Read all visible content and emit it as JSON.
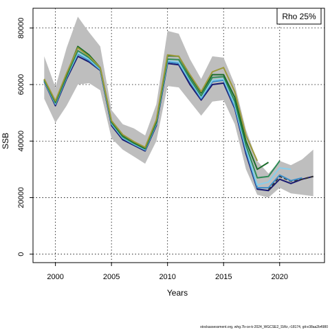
{
  "chart_data": {
    "type": "line",
    "title": "",
    "xlabel": "Years",
    "ylabel": "SSB",
    "xlim": [
      1998,
      2024
    ],
    "ylim": [
      -3000,
      87000
    ],
    "x_ticks": [
      2000,
      2005,
      2010,
      2015,
      2020
    ],
    "y_ticks": [
      0,
      20000,
      40000,
      60000,
      80000
    ],
    "grid": true,
    "legend": {
      "text": "Rho 25%",
      "position": "top-right"
    },
    "confidence_band": {
      "color": "#bebebe",
      "x": [
        1999,
        2000,
        2001,
        2002,
        2003,
        2004,
        2005,
        2006,
        2007,
        2008,
        2009,
        2010,
        2011,
        2012,
        2013,
        2014,
        2015,
        2016,
        2017,
        2018,
        2019,
        2020,
        2021,
        2022,
        2023
      ],
      "lower": [
        55000,
        46500,
        52500,
        60000,
        60500,
        58000,
        41000,
        37000,
        34500,
        32000,
        40000,
        59500,
        59000,
        54000,
        49000,
        54000,
        54500,
        46000,
        30000,
        21000,
        20000,
        23500,
        21500,
        21000,
        20500
      ],
      "upper": [
        70000,
        59000,
        73000,
        84000,
        78500,
        73500,
        51000,
        46000,
        44500,
        42000,
        53000,
        79000,
        78000,
        69000,
        62000,
        70000,
        69500,
        60000,
        44000,
        33000,
        28500,
        33000,
        31500,
        33500,
        37000
      ]
    },
    "series": [
      {
        "color": "#191970",
        "dashed": false,
        "x": [
          1999,
          2000,
          2001,
          2002,
          2003,
          2004,
          2005,
          2006,
          2007,
          2008,
          2009,
          2010,
          2011,
          2012,
          2013,
          2014,
          2015,
          2016,
          2017,
          2018,
          2019,
          2020,
          2021,
          2022,
          2023
        ],
        "values": [
          61000,
          52500,
          62000,
          70000,
          68000,
          65000,
          45500,
          40500,
          38500,
          36500,
          45500,
          67500,
          67000,
          60000,
          54500,
          60000,
          60500,
          51500,
          35500,
          23000,
          22500,
          26500,
          25000,
          26500,
          27500
        ]
      },
      {
        "color": "#333333",
        "dashed": true,
        "x": [
          2019,
          2020,
          2021,
          2022,
          2023
        ],
        "values": [
          22800,
          27500,
          25800,
          26500,
          27500
        ]
      },
      {
        "color": "#3c8dc8",
        "dashed": false,
        "x": [
          1999,
          2000,
          2001,
          2002,
          2003,
          2004,
          2005,
          2006,
          2007,
          2008,
          2009,
          2010,
          2011,
          2012,
          2013,
          2014,
          2015,
          2016,
          2017,
          2018,
          2019,
          2020,
          2021,
          2022
        ],
        "values": [
          61200,
          53000,
          62500,
          70800,
          68500,
          65200,
          46000,
          41000,
          38800,
          36800,
          46000,
          68000,
          67500,
          61000,
          55000,
          61000,
          61500,
          52000,
          36500,
          23500,
          23500,
          28000,
          26000,
          27000
        ]
      },
      {
        "color": "#87ceeb",
        "dashed": false,
        "x": [
          1999,
          2000,
          2001,
          2002,
          2003,
          2004,
          2005,
          2006,
          2007,
          2008,
          2009,
          2010,
          2011,
          2012,
          2013,
          2014,
          2015,
          2016,
          2017,
          2018,
          2019,
          2020,
          2021
        ],
        "values": [
          61300,
          53200,
          62800,
          71200,
          69000,
          65500,
          46200,
          41200,
          39000,
          37000,
          46200,
          68500,
          68000,
          61500,
          55500,
          61500,
          62000,
          53000,
          37500,
          24500,
          25500,
          30500,
          30000
        ]
      },
      {
        "color": "#2e8b57",
        "dashed": false,
        "x": [
          1999,
          2000,
          2001,
          2002,
          2003,
          2004,
          2005,
          2006,
          2007,
          2008,
          2009,
          2010,
          2011,
          2012,
          2013,
          2014,
          2015,
          2016,
          2017,
          2018,
          2019,
          2020
        ],
        "values": [
          61500,
          53500,
          63000,
          72000,
          69500,
          65800,
          46500,
          41500,
          39200,
          37200,
          46500,
          69000,
          68800,
          62000,
          56000,
          62500,
          62800,
          54000,
          38500,
          27000,
          27500,
          33000
        ]
      },
      {
        "color": "#1b6b2b",
        "dashed": false,
        "x": [
          1999,
          2000,
          2001,
          2002,
          2003,
          2004,
          2005,
          2006,
          2007,
          2008,
          2009,
          2010,
          2011,
          2012,
          2013,
          2014,
          2015,
          2016,
          2017,
          2018,
          2019
        ],
        "values": [
          61800,
          54000,
          63500,
          73500,
          70500,
          66000,
          47000,
          42000,
          39500,
          37500,
          47000,
          70200,
          70000,
          63000,
          57000,
          63500,
          63500,
          55500,
          40000,
          30000,
          32500
        ]
      },
      {
        "color": "#9c9a3a",
        "dashed": false,
        "x": [
          1999,
          2000,
          2001,
          2002,
          2003,
          2004,
          2005,
          2006,
          2007,
          2008,
          2009,
          2010,
          2011,
          2012,
          2013,
          2014,
          2015,
          2016,
          2017,
          2018
        ],
        "values": [
          62000,
          54200,
          64000,
          73000,
          70000,
          66000,
          47200,
          42300,
          39800,
          37800,
          47500,
          70500,
          70000,
          63500,
          57500,
          64500,
          66000,
          57500,
          42000,
          33000
        ]
      }
    ]
  },
  "footer": {
    "text": "stockassessment.org, whg.7b-ce-k-2024_WGCSE2_SWz, r18174, git:e38aa2b4980"
  }
}
